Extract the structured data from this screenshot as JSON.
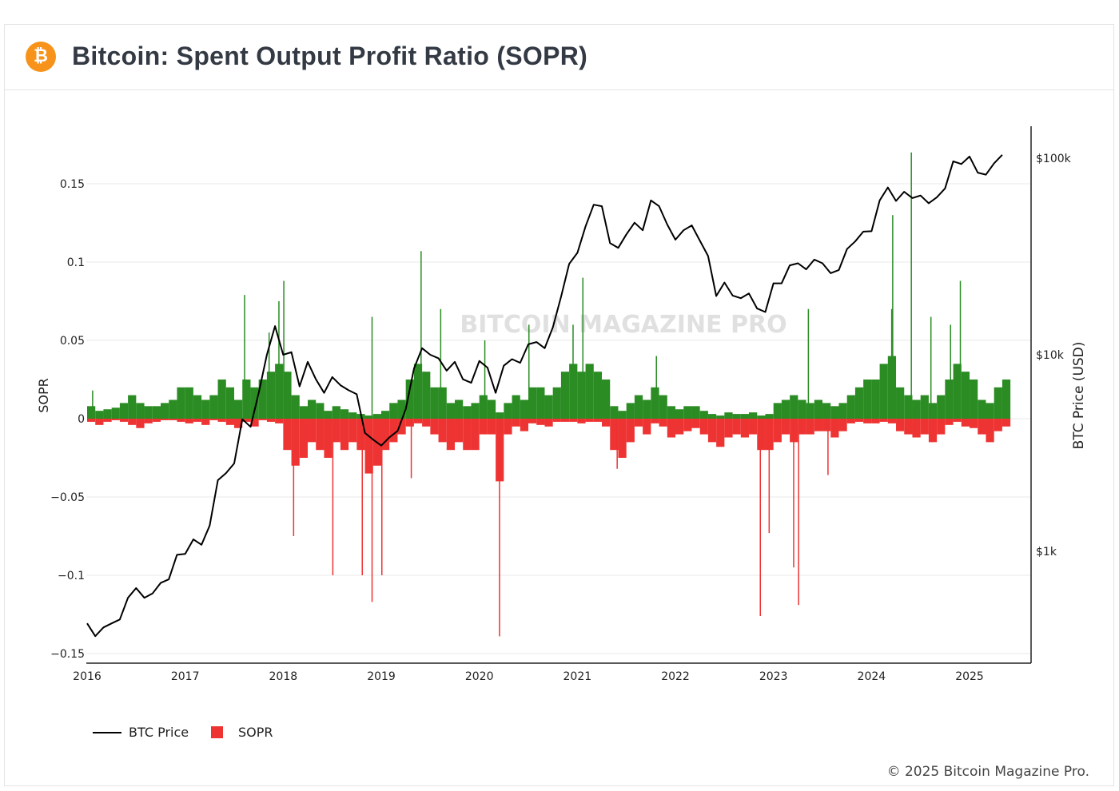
{
  "header": {
    "title": "Bitcoin: Spent Output Profit Ratio (SOPR)",
    "logo_icon": "bitcoin-icon",
    "logo_glyph": "₿"
  },
  "watermark": "BITCOIN MAGAZINE PRO",
  "footer": "© 2025 Bitcoin Magazine Pro.",
  "chart_data": {
    "type": "bar+line",
    "title": "Bitcoin: Spent Output Profit Ratio (SOPR)",
    "xlabel": "",
    "ylabel": "SOPR",
    "y2label": "BTC Price (USD)",
    "xlim": [
      2016,
      2025.4
    ],
    "ylim": [
      -0.155,
      0.17
    ],
    "y2_scale": "log",
    "x_ticks": [
      "2016",
      "2017",
      "2018",
      "2019",
      "2020",
      "2021",
      "2022",
      "2023",
      "2024",
      "2025"
    ],
    "y_ticks": [
      {
        "v": 0.15,
        "label": "0.15"
      },
      {
        "v": 0.1,
        "label": "0.1"
      },
      {
        "v": 0.05,
        "label": "0.05"
      },
      {
        "v": 0,
        "label": "0"
      },
      {
        "v": -0.05,
        "label": "−0.05"
      },
      {
        "v": -0.1,
        "label": "−0.1"
      },
      {
        "v": -0.15,
        "label": "−0.15"
      }
    ],
    "y2_ticks": [
      {
        "v": 100000,
        "label": "$100k"
      },
      {
        "v": 10000,
        "label": "$10k"
      },
      {
        "v": 1000,
        "label": "$1k"
      }
    ],
    "grid": true,
    "legend": {
      "placement": "bottom-left",
      "items": [
        {
          "name": "BTC Price",
          "color": "#000000"
        },
        {
          "name": "SOPR",
          "color": "#ee3333"
        }
      ]
    },
    "colors": {
      "positive": "#2a8c23",
      "negative": "#ee3333",
      "price": "#000000"
    },
    "start_year": 2016,
    "sopr_monthly_positive": [
      0.008,
      0.005,
      0.006,
      0.007,
      0.01,
      0.015,
      0.01,
      0.008,
      0.008,
      0.01,
      0.012,
      0.02,
      0.02,
      0.015,
      0.012,
      0.015,
      0.025,
      0.02,
      0.012,
      0.025,
      0.02,
      0.025,
      0.03,
      0.035,
      0.03,
      0.015,
      0.008,
      0.012,
      0.01,
      0.005,
      0.008,
      0.006,
      0.004,
      0.003,
      0.002,
      0.003,
      0.005,
      0.01,
      0.012,
      0.025,
      0.035,
      0.03,
      0.02,
      0.02,
      0.01,
      0.012,
      0.008,
      0.01,
      0.015,
      0.012,
      0.004,
      0.01,
      0.015,
      0.012,
      0.02,
      0.02,
      0.015,
      0.02,
      0.03,
      0.035,
      0.03,
      0.035,
      0.03,
      0.025,
      0.008,
      0.005,
      0.01,
      0.015,
      0.012,
      0.02,
      0.015,
      0.008,
      0.006,
      0.008,
      0.008,
      0.005,
      0.003,
      0.002,
      0.004,
      0.003,
      0.003,
      0.004,
      0.002,
      0.003,
      0.01,
      0.012,
      0.015,
      0.012,
      0.01,
      0.012,
      0.01,
      0.008,
      0.01,
      0.015,
      0.02,
      0.025,
      0.025,
      0.035,
      0.04,
      0.02,
      0.015,
      0.012,
      0.015,
      0.01,
      0.015,
      0.025,
      0.035,
      0.03,
      0.025,
      0.012,
      0.01,
      0.02,
      0.025
    ],
    "sopr_monthly_negative": [
      -0.002,
      -0.004,
      -0.002,
      -0.001,
      -0.002,
      -0.004,
      -0.006,
      -0.003,
      -0.002,
      -0.001,
      -0.001,
      -0.002,
      -0.003,
      -0.002,
      -0.004,
      -0.001,
      -0.002,
      -0.004,
      -0.006,
      -0.002,
      -0.005,
      -0.001,
      -0.002,
      -0.003,
      -0.02,
      -0.03,
      -0.025,
      -0.015,
      -0.02,
      -0.025,
      -0.015,
      -0.02,
      -0.015,
      -0.02,
      -0.035,
      -0.03,
      -0.02,
      -0.015,
      -0.01,
      -0.005,
      -0.003,
      -0.005,
      -0.01,
      -0.015,
      -0.02,
      -0.015,
      -0.02,
      -0.02,
      -0.01,
      -0.01,
      -0.04,
      -0.01,
      -0.005,
      -0.008,
      -0.003,
      -0.004,
      -0.005,
      -0.002,
      -0.002,
      -0.002,
      -0.003,
      -0.002,
      -0.002,
      -0.005,
      -0.02,
      -0.025,
      -0.015,
      -0.005,
      -0.01,
      -0.003,
      -0.005,
      -0.012,
      -0.01,
      -0.008,
      -0.006,
      -0.01,
      -0.015,
      -0.018,
      -0.012,
      -0.01,
      -0.012,
      -0.01,
      -0.02,
      -0.02,
      -0.015,
      -0.01,
      -0.015,
      -0.01,
      -0.01,
      -0.008,
      -0.008,
      -0.012,
      -0.008,
      -0.003,
      -0.002,
      -0.003,
      -0.003,
      -0.002,
      -0.003,
      -0.008,
      -0.01,
      -0.012,
      -0.01,
      -0.015,
      -0.01,
      -0.004,
      -0.002,
      -0.005,
      -0.006,
      -0.01,
      -0.015,
      -0.008,
      -0.005
    ],
    "sopr_spikes": [
      [
        2016.05,
        0.018
      ],
      [
        2017.6,
        0.079
      ],
      [
        2017.85,
        0.055
      ],
      [
        2017.95,
        0.075
      ],
      [
        2018.0,
        0.088
      ],
      [
        2018.9,
        0.065
      ],
      [
        2019.4,
        0.107
      ],
      [
        2019.6,
        0.07
      ],
      [
        2020.05,
        0.05
      ],
      [
        2020.5,
        0.06
      ],
      [
        2020.95,
        0.06
      ],
      [
        2021.05,
        0.09
      ],
      [
        2021.8,
        0.04
      ],
      [
        2023.35,
        0.07
      ],
      [
        2024.2,
        0.07
      ],
      [
        2024.21,
        0.13
      ],
      [
        2024.4,
        0.17
      ],
      [
        2024.6,
        0.065
      ],
      [
        2024.8,
        0.06
      ],
      [
        2024.9,
        0.088
      ],
      [
        2018.1,
        -0.075
      ],
      [
        2018.5,
        -0.1
      ],
      [
        2018.8,
        -0.1
      ],
      [
        2018.9,
        -0.117
      ],
      [
        2019.0,
        -0.1
      ],
      [
        2019.3,
        -0.038
      ],
      [
        2020.2,
        -0.139
      ],
      [
        2021.4,
        -0.032
      ],
      [
        2022.86,
        -0.126
      ],
      [
        2022.95,
        -0.073
      ],
      [
        2023.2,
        -0.095
      ],
      [
        2023.25,
        -0.119
      ],
      [
        2023.55,
        -0.036
      ]
    ],
    "price_monthly": [
      430,
      370,
      410,
      430,
      450,
      580,
      650,
      580,
      610,
      690,
      720,
      960,
      970,
      1150,
      1080,
      1350,
      2300,
      2500,
      2800,
      4700,
      4300,
      6400,
      10000,
      14000,
      10000,
      10300,
      6900,
      9200,
      7500,
      6400,
      7700,
      7000,
      6600,
      6300,
      4000,
      3700,
      3450,
      3800,
      4100,
      5300,
      8500,
      10800,
      10000,
      9600,
      8300,
      9200,
      7500,
      7200,
      9300,
      8600,
      6400,
      8800,
      9500,
      9100,
      11300,
      11600,
      10800,
      13800,
      19700,
      29000,
      33000,
      45000,
      58000,
      57000,
      37000,
      35000,
      41000,
      47000,
      43000,
      61000,
      57000,
      46000,
      38500,
      43000,
      45500,
      38000,
      31800,
      19900,
      23300,
      20000,
      19400,
      20500,
      17200,
      16500,
      23100,
      23100,
      28500,
      29200,
      27200,
      30500,
      29200,
      26000,
      27000,
      34500,
      37700,
      42300,
      42500,
      61000,
      71000,
      60600,
      67500,
      62700,
      64600,
      59000,
      63300,
      70200,
      96400,
      93400,
      102000,
      84400,
      82500,
      94200,
      104000
    ]
  }
}
